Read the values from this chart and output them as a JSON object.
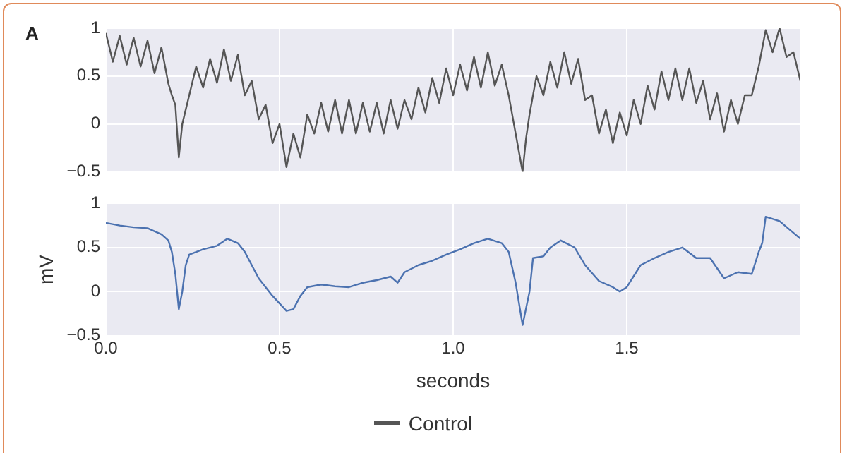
{
  "chart_data": [
    {
      "type": "line",
      "annotations": [
        "A"
      ],
      "legend": "bottom",
      "grid": true,
      "tick_labels": "y",
      "xlim": [
        0,
        2.0
      ],
      "xticks": [
        0,
        0.5,
        1,
        1.5
      ],
      "ylim": [
        -0.5,
        1
      ],
      "yticks": [
        {
          "value": -0.5,
          "label": "−0.5"
        },
        0,
        0.5,
        1
      ],
      "series": [
        {
          "name": "Control",
          "color": "#555555",
          "x": [
            0,
            0.02,
            0.04,
            0.06,
            0.08,
            0.1,
            0.12,
            0.14,
            0.16,
            0.18,
            0.19,
            0.2,
            0.21,
            0.22,
            0.23,
            0.24,
            0.26,
            0.28,
            0.3,
            0.32,
            0.34,
            0.36,
            0.38,
            0.4,
            0.42,
            0.44,
            0.46,
            0.48,
            0.5,
            0.52,
            0.54,
            0.56,
            0.58,
            0.6,
            0.62,
            0.64,
            0.66,
            0.68,
            0.7,
            0.72,
            0.74,
            0.76,
            0.78,
            0.8,
            0.82,
            0.84,
            0.86,
            0.88,
            0.9,
            0.92,
            0.94,
            0.96,
            0.98,
            1.0,
            1.02,
            1.04,
            1.06,
            1.08,
            1.1,
            1.12,
            1.14,
            1.16,
            1.17,
            1.18,
            1.19,
            1.2,
            1.21,
            1.22,
            1.24,
            1.26,
            1.28,
            1.3,
            1.32,
            1.34,
            1.36,
            1.38,
            1.4,
            1.42,
            1.44,
            1.46,
            1.48,
            1.5,
            1.52,
            1.54,
            1.56,
            1.58,
            1.6,
            1.62,
            1.64,
            1.66,
            1.68,
            1.7,
            1.72,
            1.74,
            1.76,
            1.78,
            1.8,
            1.82,
            1.84,
            1.86,
            1.88,
            1.9,
            1.92,
            1.94,
            1.96,
            1.98,
            2.0
          ],
          "values": [
            0.95,
            0.65,
            0.92,
            0.62,
            0.9,
            0.6,
            0.87,
            0.53,
            0.8,
            0.42,
            0.3,
            0.2,
            -0.35,
            0.0,
            0.15,
            0.3,
            0.6,
            0.38,
            0.68,
            0.43,
            0.78,
            0.45,
            0.72,
            0.3,
            0.45,
            0.05,
            0.2,
            -0.2,
            0.0,
            -0.45,
            -0.1,
            -0.35,
            0.1,
            -0.1,
            0.22,
            -0.08,
            0.25,
            -0.1,
            0.25,
            -0.1,
            0.22,
            -0.08,
            0.22,
            -0.1,
            0.25,
            -0.05,
            0.25,
            0.05,
            0.38,
            0.12,
            0.48,
            0.22,
            0.58,
            0.3,
            0.62,
            0.35,
            0.7,
            0.38,
            0.75,
            0.4,
            0.62,
            0.3,
            0.1,
            -0.1,
            -0.3,
            -0.5,
            -0.15,
            0.1,
            0.5,
            0.3,
            0.65,
            0.38,
            0.75,
            0.42,
            0.68,
            0.25,
            0.3,
            -0.1,
            0.15,
            -0.2,
            0.12,
            -0.12,
            0.25,
            0.0,
            0.4,
            0.15,
            0.55,
            0.25,
            0.58,
            0.25,
            0.58,
            0.22,
            0.45,
            0.05,
            0.32,
            -0.08,
            0.25,
            0.0,
            0.3,
            0.3,
            0.6,
            0.98,
            0.75,
            1.0,
            0.7,
            0.75,
            0.45
          ]
        }
      ]
    },
    {
      "type": "line",
      "ylabel": "mV",
      "xlabel": "seconds",
      "grid": true,
      "xlim": [
        0,
        2.0
      ],
      "xticks": [
        {
          "value": 0,
          "label": "0.0"
        },
        0.5,
        {
          "value": 1,
          "label": "1.0"
        },
        1.5
      ],
      "ylim": [
        -0.5,
        1
      ],
      "yticks": [
        {
          "value": -0.5,
          "label": "−0.5"
        },
        0,
        0.5,
        1
      ],
      "series": [
        {
          "color": "#4c72b0",
          "x": [
            0,
            0.04,
            0.08,
            0.12,
            0.16,
            0.18,
            0.19,
            0.2,
            0.21,
            0.22,
            0.23,
            0.24,
            0.28,
            0.32,
            0.35,
            0.38,
            0.4,
            0.44,
            0.48,
            0.52,
            0.54,
            0.56,
            0.58,
            0.62,
            0.66,
            0.7,
            0.74,
            0.78,
            0.82,
            0.84,
            0.86,
            0.9,
            0.94,
            0.98,
            1.02,
            1.06,
            1.1,
            1.14,
            1.16,
            1.18,
            1.2,
            1.22,
            1.23,
            1.26,
            1.28,
            1.31,
            1.35,
            1.38,
            1.42,
            1.46,
            1.48,
            1.5,
            1.54,
            1.58,
            1.62,
            1.66,
            1.7,
            1.74,
            1.78,
            1.82,
            1.86,
            1.88,
            1.89,
            1.9,
            1.94,
            1.97,
            2.0
          ],
          "values": [
            0.78,
            0.75,
            0.73,
            0.72,
            0.65,
            0.58,
            0.45,
            0.2,
            -0.2,
            0.0,
            0.3,
            0.42,
            0.48,
            0.52,
            0.6,
            0.55,
            0.45,
            0.15,
            -0.05,
            -0.22,
            -0.2,
            -0.05,
            0.05,
            0.08,
            0.06,
            0.05,
            0.1,
            0.13,
            0.17,
            0.1,
            0.22,
            0.3,
            0.35,
            0.42,
            0.48,
            0.55,
            0.6,
            0.55,
            0.45,
            0.1,
            -0.38,
            0.0,
            0.38,
            0.4,
            0.5,
            0.58,
            0.5,
            0.3,
            0.12,
            0.05,
            0.0,
            0.05,
            0.3,
            0.38,
            0.45,
            0.5,
            0.38,
            0.38,
            0.15,
            0.22,
            0.2,
            0.45,
            0.55,
            0.85,
            0.8,
            0.7,
            0.6
          ]
        }
      ]
    }
  ]
}
